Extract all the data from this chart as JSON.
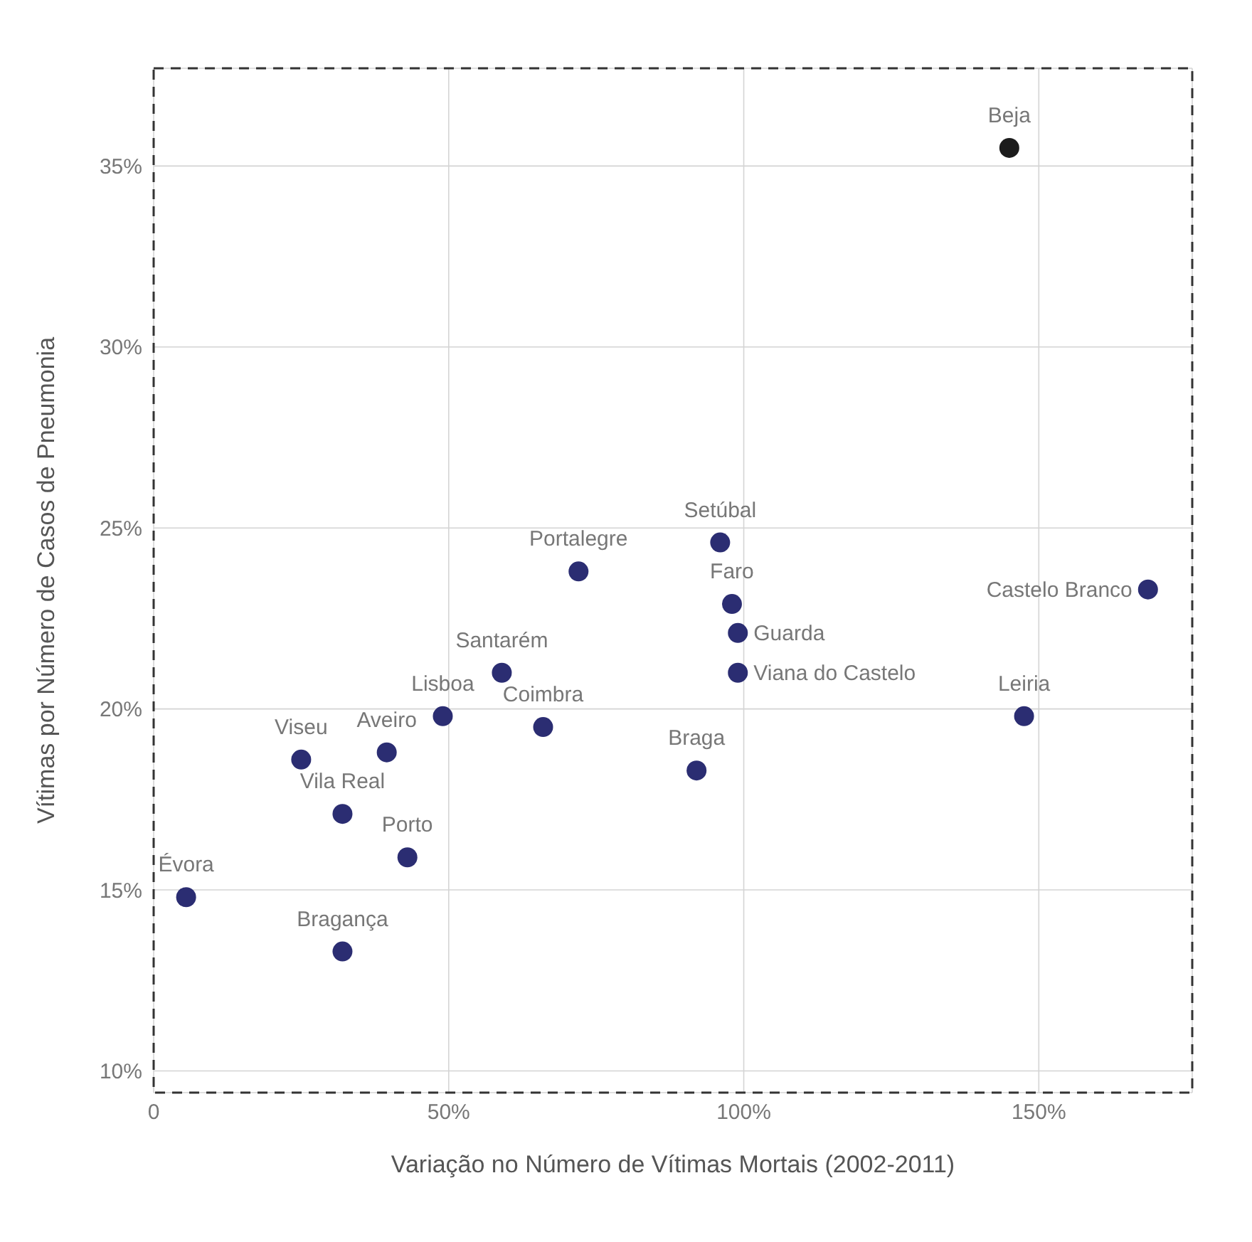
{
  "chart_data": {
    "type": "scatter",
    "xlabel": "Variação no Número de Vítimas Mortais (2002-2011)",
    "ylabel": "Vítimas por Número de Casos de Pneumonia",
    "x": [
      145,
      168.5,
      147.5,
      96,
      98,
      99,
      99,
      92,
      72,
      59,
      66,
      49,
      39.5,
      25,
      32,
      43,
      5.5,
      32
    ],
    "values": [
      35.5,
      23.3,
      19.8,
      24.6,
      22.9,
      22.1,
      21.0,
      18.3,
      23.8,
      21.0,
      19.5,
      19.8,
      18.8,
      18.6,
      17.1,
      15.9,
      14.8,
      13.3
    ],
    "colors": [
      "#1c1c1c",
      "#2b2d72",
      "#2b2d72",
      "#2b2d72",
      "#2b2d72",
      "#2b2d72",
      "#2b2d72",
      "#2b2d72",
      "#2b2d72",
      "#2b2d72",
      "#2b2d72",
      "#2b2d72",
      "#2b2d72",
      "#2b2d72",
      "#2b2d72",
      "#2b2d72",
      "#2b2d72",
      "#2b2d72"
    ],
    "marker": "circle",
    "annotations": [
      {
        "text": "Beja",
        "x": 145,
        "y": 35.5
      },
      {
        "text": "Castelo Branco",
        "x": 168.5,
        "y": 23.3
      },
      {
        "text": "Leiria",
        "x": 147.5,
        "y": 19.8
      },
      {
        "text": "Setúbal",
        "x": 96,
        "y": 24.6
      },
      {
        "text": "Faro",
        "x": 98,
        "y": 22.9
      },
      {
        "text": "Guarda",
        "x": 99,
        "y": 22.1
      },
      {
        "text": "Viana do Castelo",
        "x": 99,
        "y": 21.0
      },
      {
        "text": "Braga",
        "x": 92,
        "y": 18.3
      },
      {
        "text": "Portalegre",
        "x": 72,
        "y": 23.8
      },
      {
        "text": "Santarém",
        "x": 59,
        "y": 21.0
      },
      {
        "text": "Coimbra",
        "x": 66,
        "y": 19.5
      },
      {
        "text": "Lisboa",
        "x": 49,
        "y": 19.8
      },
      {
        "text": "Aveiro",
        "x": 39.5,
        "y": 18.8
      },
      {
        "text": "Viseu",
        "x": 25,
        "y": 18.6
      },
      {
        "text": "Vila Real",
        "x": 32,
        "y": 17.1
      },
      {
        "text": "Porto",
        "x": 43,
        "y": 15.9
      },
      {
        "text": "Évora",
        "x": 5.5,
        "y": 14.8
      },
      {
        "text": "Bragança",
        "x": 32,
        "y": 13.3
      }
    ],
    "xlim": [
      0,
      176
    ],
    "xticks": [
      {
        "value": 0,
        "label": "0"
      },
      {
        "value": 50,
        "label": "50%"
      },
      {
        "value": 100,
        "label": "100%"
      },
      {
        "value": 150,
        "label": "150%"
      }
    ],
    "ylim": [
      9.4,
      37.7
    ],
    "yticks": [
      {
        "value": 10,
        "label": "10%"
      },
      {
        "value": 15,
        "label": "15%"
      },
      {
        "value": 20,
        "label": "20%"
      },
      {
        "value": 25,
        "label": "25%"
      },
      {
        "value": 30,
        "label": "30%"
      },
      {
        "value": 35,
        "label": "35%"
      }
    ],
    "grid": true
  }
}
